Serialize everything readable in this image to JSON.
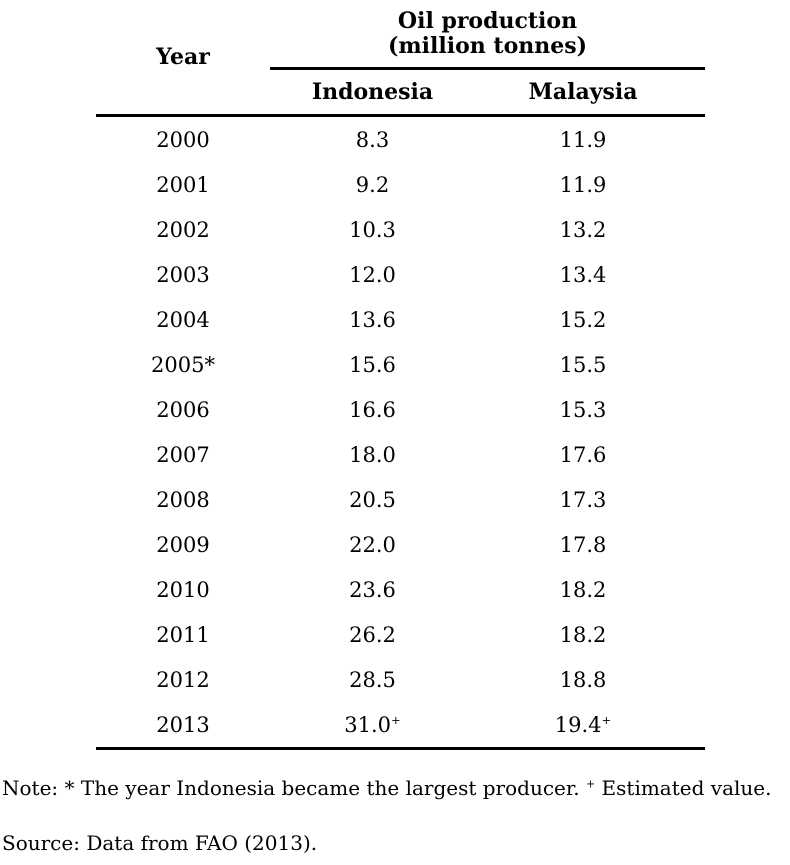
{
  "table": {
    "col_year": "Year",
    "group_header_line1": "Oil production",
    "group_header_line2": "(million tonnes)",
    "col_indonesia": "Indonesia",
    "col_malaysia": "Malaysia",
    "rows": [
      {
        "year": "2000",
        "indonesia": "8.3",
        "indonesia_sup": "",
        "malaysia": "11.9",
        "malaysia_sup": ""
      },
      {
        "year": "2001",
        "indonesia": "9.2",
        "indonesia_sup": "",
        "malaysia": "11.9",
        "malaysia_sup": ""
      },
      {
        "year": "2002",
        "indonesia": "10.3",
        "indonesia_sup": "",
        "malaysia": "13.2",
        "malaysia_sup": ""
      },
      {
        "year": "2003",
        "indonesia": "12.0",
        "indonesia_sup": "",
        "malaysia": "13.4",
        "malaysia_sup": ""
      },
      {
        "year": "2004",
        "indonesia": "13.6",
        "indonesia_sup": "",
        "malaysia": "15.2",
        "malaysia_sup": ""
      },
      {
        "year": "2005*",
        "indonesia": "15.6",
        "indonesia_sup": "",
        "malaysia": "15.5",
        "malaysia_sup": ""
      },
      {
        "year": "2006",
        "indonesia": "16.6",
        "indonesia_sup": "",
        "malaysia": "15.3",
        "malaysia_sup": ""
      },
      {
        "year": "2007",
        "indonesia": "18.0",
        "indonesia_sup": "",
        "malaysia": "17.6",
        "malaysia_sup": ""
      },
      {
        "year": "2008",
        "indonesia": "20.5",
        "indonesia_sup": "",
        "malaysia": "17.3",
        "malaysia_sup": ""
      },
      {
        "year": "2009",
        "indonesia": "22.0",
        "indonesia_sup": "",
        "malaysia": "17.8",
        "malaysia_sup": ""
      },
      {
        "year": "2010",
        "indonesia": "23.6",
        "indonesia_sup": "",
        "malaysia": "18.2",
        "malaysia_sup": ""
      },
      {
        "year": "2011",
        "indonesia": "26.2",
        "indonesia_sup": "",
        "malaysia": "18.2",
        "malaysia_sup": ""
      },
      {
        "year": "2012",
        "indonesia": "28.5",
        "indonesia_sup": "",
        "malaysia": "18.8",
        "malaysia_sup": ""
      },
      {
        "year": "2013",
        "indonesia": "31.0",
        "indonesia_sup": "+",
        "malaysia": "19.4",
        "malaysia_sup": "+"
      }
    ]
  },
  "notes": {
    "note_prefix": "Note: * The year Indonesia became the largest producer. ",
    "note_sup": "+",
    "note_suffix": " Estimated value.",
    "source": "Source: Data from FAO (2013)."
  },
  "chart_data": {
    "type": "table",
    "title": "Oil production (million tonnes)",
    "categories": [
      "2000",
      "2001",
      "2002",
      "2003",
      "2004",
      "2005",
      "2006",
      "2007",
      "2008",
      "2009",
      "2010",
      "2011",
      "2012",
      "2013"
    ],
    "series": [
      {
        "name": "Indonesia",
        "values": [
          8.3,
          9.2,
          10.3,
          12.0,
          13.6,
          15.6,
          16.6,
          18.0,
          20.5,
          22.0,
          23.6,
          26.2,
          28.5,
          31.0
        ]
      },
      {
        "name": "Malaysia",
        "values": [
          11.9,
          11.9,
          13.2,
          13.4,
          15.2,
          15.5,
          15.3,
          17.6,
          17.3,
          17.8,
          18.2,
          18.2,
          18.8,
          19.4
        ]
      }
    ],
    "annotations": [
      "Note: * The year Indonesia became the largest producer. + Estimated value.",
      "Source: Data from FAO (2013)."
    ]
  }
}
